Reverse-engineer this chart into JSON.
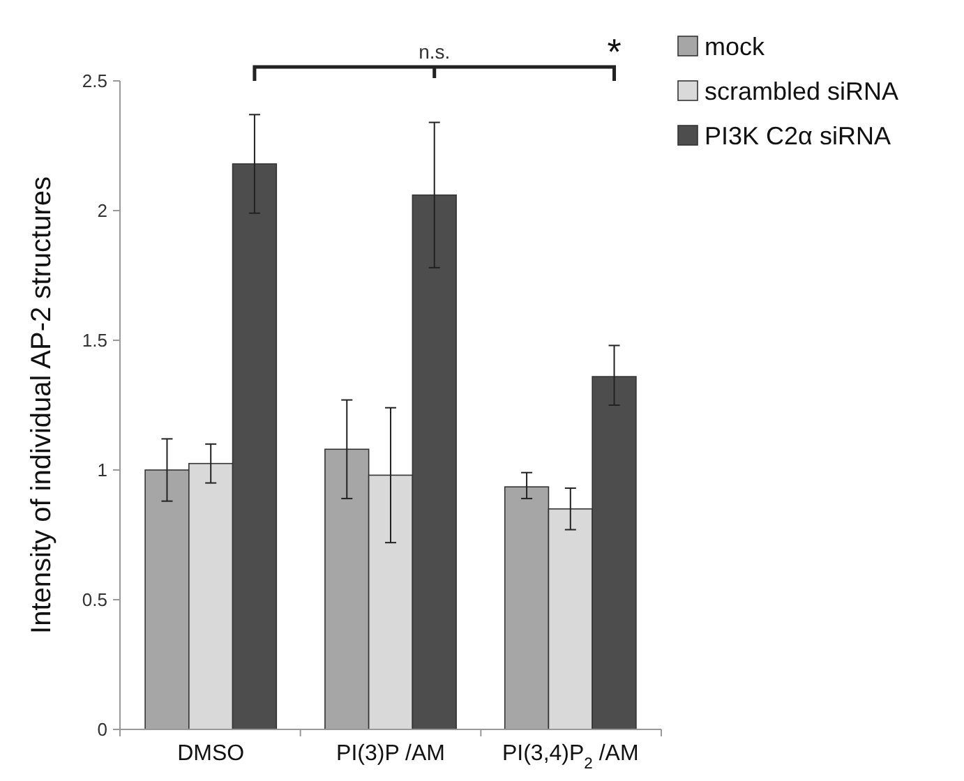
{
  "chart_data": {
    "type": "bar",
    "ylabel": "Intensity of individual AP-2 structures",
    "categories": [
      "DMSO",
      "PI(3)P /AM",
      "PI(3,4)P$_{2}$ /AM"
    ],
    "series": [
      {
        "name": "mock",
        "color": "#a6a6a6",
        "values": [
          1.0,
          1.08,
          0.935
        ],
        "errors": [
          [
            0.88,
            1.12
          ],
          [
            0.89,
            1.27
          ],
          [
            0.89,
            0.99
          ]
        ]
      },
      {
        "name": "scrambled siRNA",
        "color": "#d9d9d9",
        "values": [
          1.025,
          0.98,
          0.85
        ],
        "errors": [
          [
            0.95,
            1.1
          ],
          [
            0.72,
            1.24
          ],
          [
            0.77,
            0.93
          ]
        ]
      },
      {
        "name": "PI3K C2α siRNA",
        "color": "#4d4d4d",
        "values": [
          2.18,
          2.06,
          1.36
        ],
        "errors": [
          [
            1.99,
            2.37
          ],
          [
            1.78,
            2.34
          ],
          [
            1.25,
            1.48
          ]
        ]
      }
    ],
    "ylim": [
      0,
      2.5
    ],
    "yticks": [
      0,
      0.5,
      1,
      1.5,
      2,
      2.5
    ],
    "annotations": [
      "n.s.",
      "*"
    ],
    "legend": "top right",
    "grid": false
  }
}
